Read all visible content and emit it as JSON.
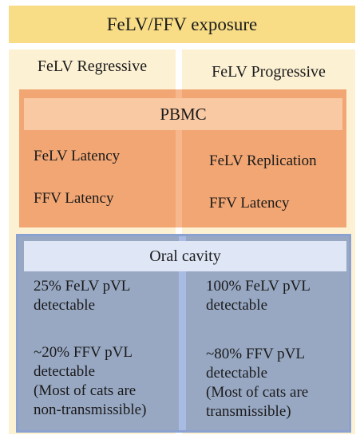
{
  "title": "FeLV/FFV exposure",
  "columns": {
    "left": "FeLV Regressive",
    "right": "FeLV Progressive"
  },
  "pbmc": {
    "header": "PBMC",
    "left": [
      "FeLV Latency",
      "FFV Latency"
    ],
    "right": [
      "FeLV Replication",
      "FFV Latency"
    ]
  },
  "oral": {
    "header": "Oral cavity",
    "left": {
      "felv": [
        "25% FeLV pVL",
        "detectable"
      ],
      "ffv": [
        "~20% FFV pVL",
        "detectable",
        "(Most of cats are",
        "non-transmissible)"
      ]
    },
    "right": {
      "felv": [
        "100% FeLV pVL",
        "detectable"
      ],
      "ffv": [
        "~80% FFV pVL",
        "detectable",
        "(Most of cats are",
        "transmissible)"
      ]
    }
  },
  "colors": {
    "banner": "#f8dd86",
    "column_bg": "#fdf1d4",
    "pbmc_panel": "#f2a673",
    "pbmc_header": "#f8c9a3",
    "oral_panel": "#98a8c3",
    "oral_border": "#8ba2d0",
    "oral_header": "#dfe7f7"
  }
}
